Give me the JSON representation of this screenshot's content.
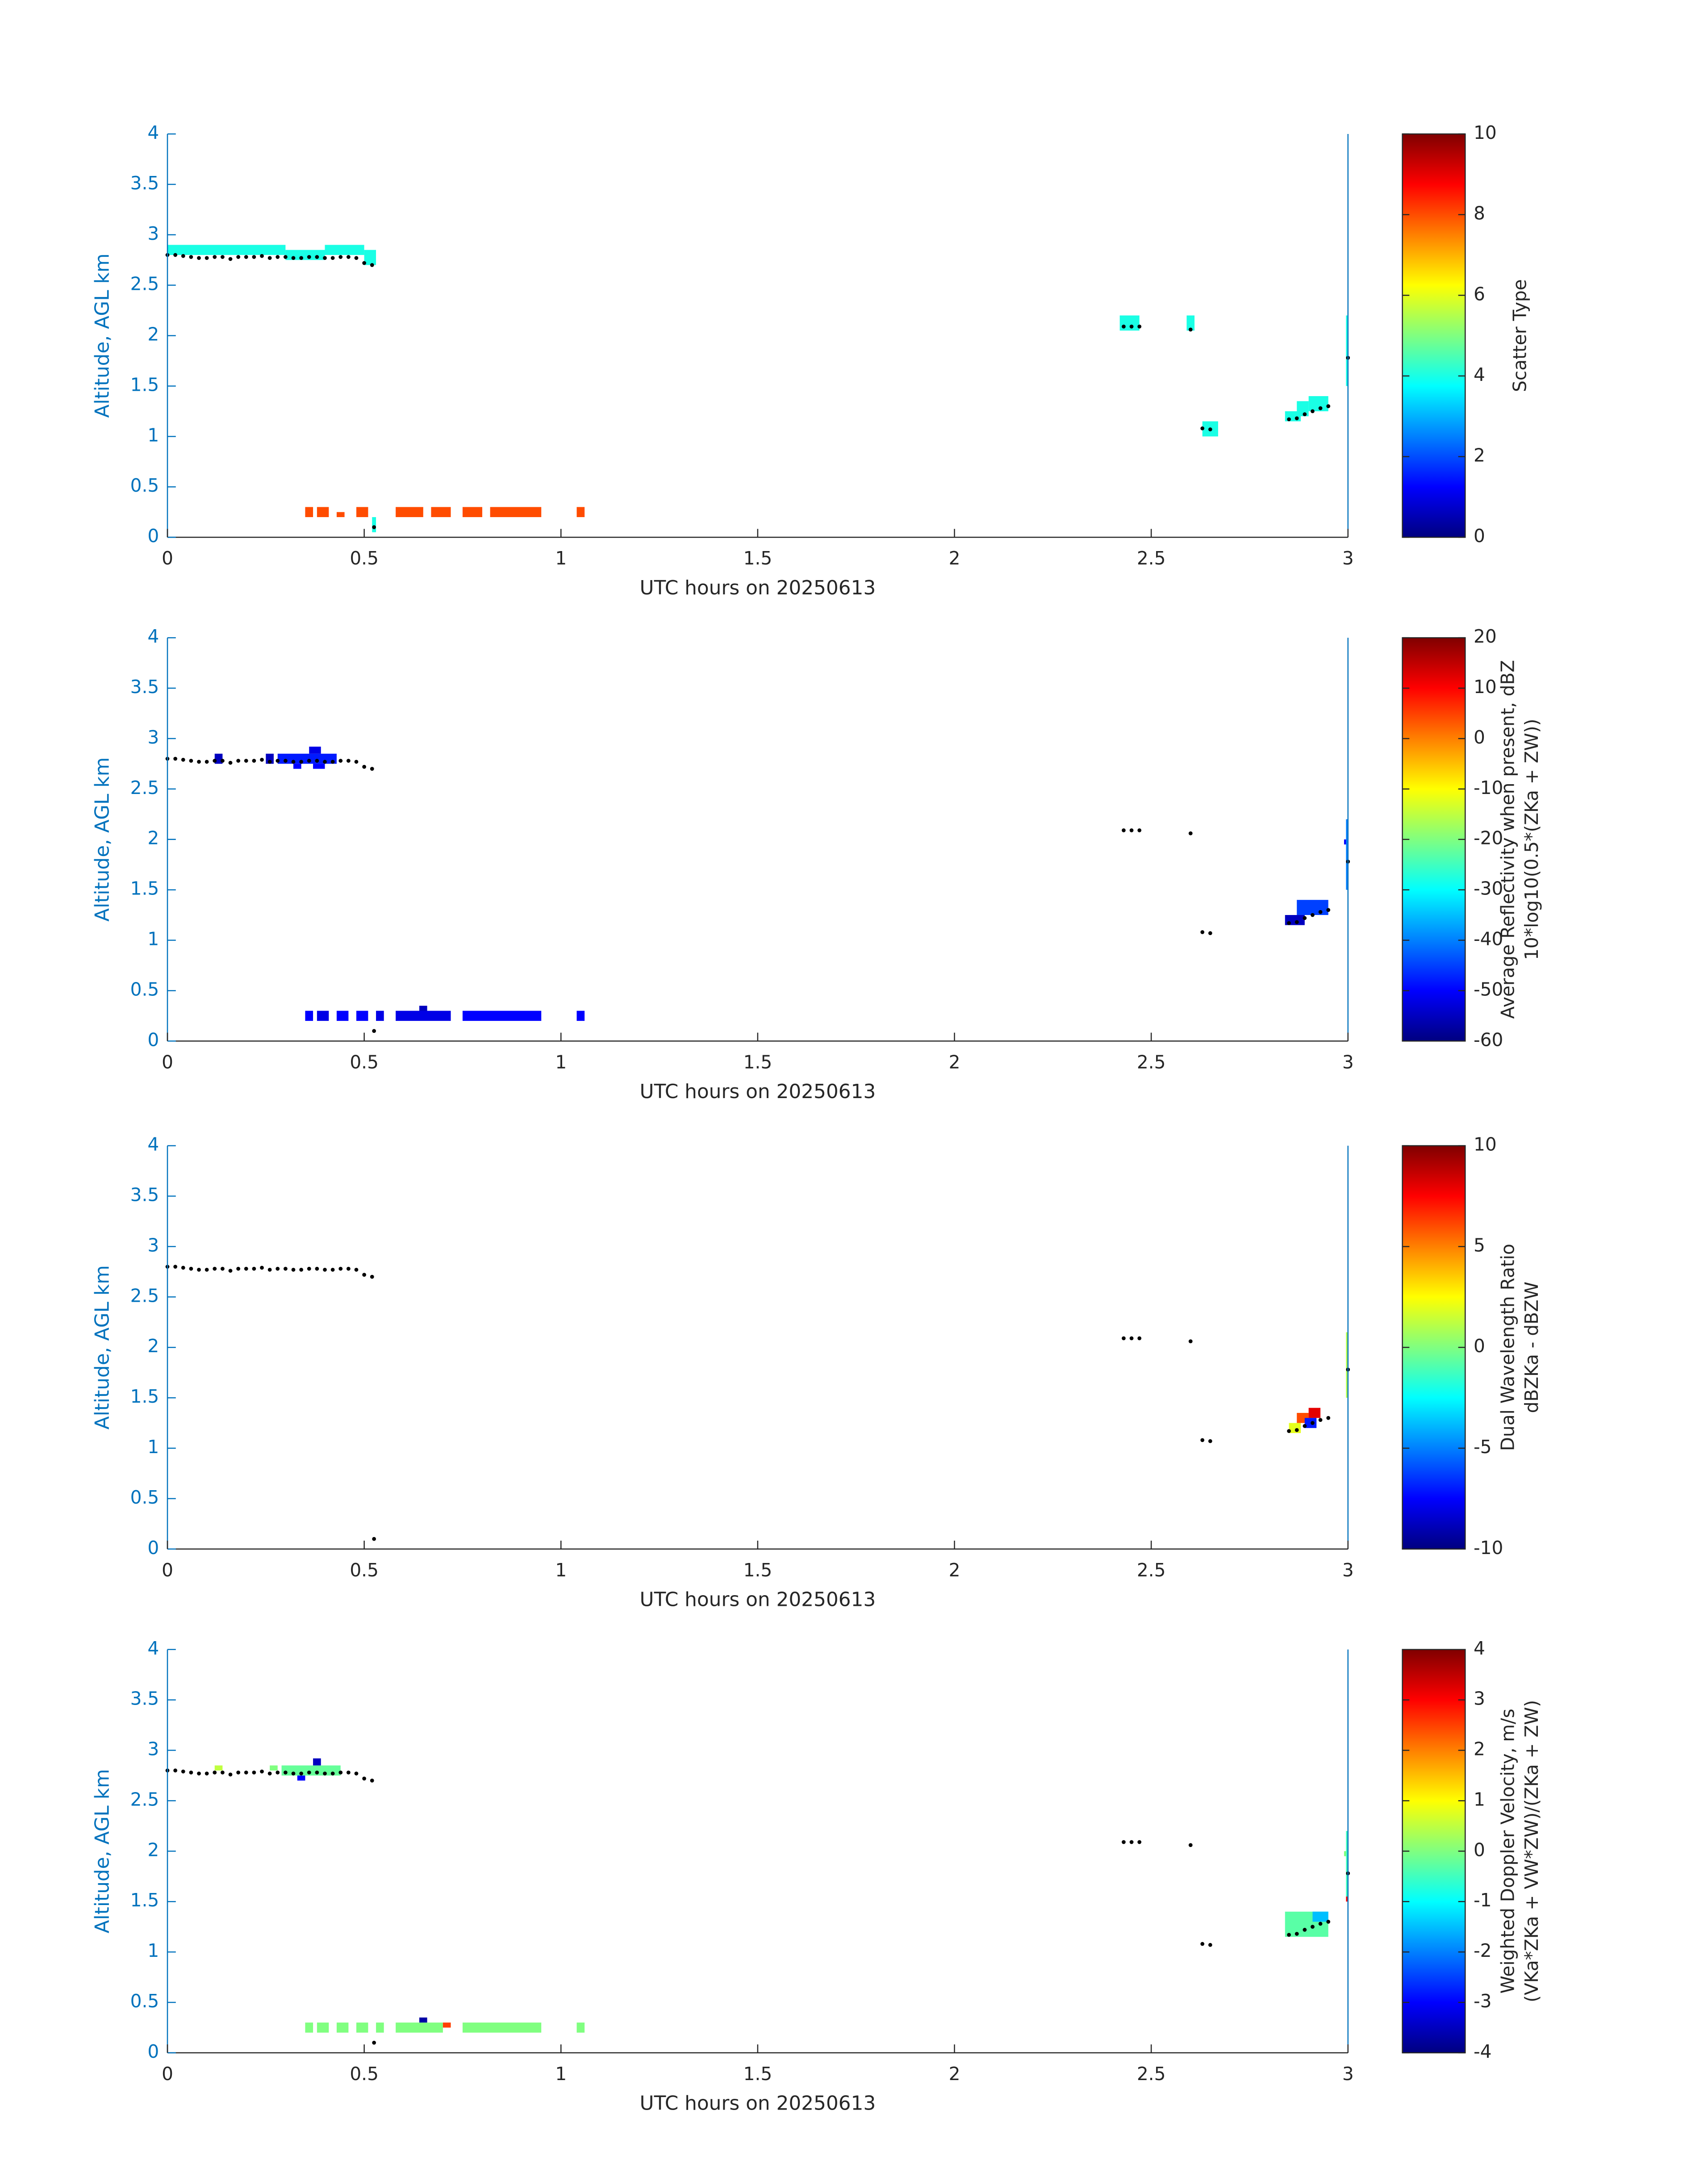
{
  "chart_data": [
    {
      "type": "heatmap",
      "xlabel": "UTC hours on 20250613",
      "ylabel": "Altitude, AGL km",
      "xlim": [
        0,
        3
      ],
      "ylim": [
        0,
        4
      ],
      "xticks": [
        0,
        0.5,
        1,
        1.5,
        2,
        2.5,
        3
      ],
      "yticks": [
        0,
        0.5,
        1,
        1.5,
        2,
        2.5,
        3,
        3.5,
        4
      ],
      "colormap": "jet",
      "clim": [
        0,
        10
      ],
      "cticks": [
        0,
        2,
        4,
        6,
        8,
        10
      ],
      "colorbar_label": [
        "Scatter Type"
      ],
      "cells": [
        {
          "x": [
            0,
            0.3
          ],
          "y": [
            2.8,
            2.9
          ],
          "value": 4
        },
        {
          "x": [
            0.3,
            0.4
          ],
          "y": [
            2.75,
            2.85
          ],
          "value": 4
        },
        {
          "x": [
            0.4,
            0.5
          ],
          "y": [
            2.8,
            2.9
          ],
          "value": 4
        },
        {
          "x": [
            0.5,
            0.53
          ],
          "y": [
            2.7,
            2.85
          ],
          "value": 4
        },
        {
          "x": [
            0.52,
            0.53
          ],
          "y": [
            0.05,
            0.2
          ],
          "value": 4
        },
        {
          "x": [
            2.42,
            2.47
          ],
          "y": [
            2.05,
            2.2
          ],
          "value": 4
        },
        {
          "x": [
            2.59,
            2.61
          ],
          "y": [
            2.05,
            2.2
          ],
          "value": 4
        },
        {
          "x": [
            2.63,
            2.67
          ],
          "y": [
            1.0,
            1.15
          ],
          "value": 4
        },
        {
          "x": [
            2.84,
            2.88
          ],
          "y": [
            1.15,
            1.25
          ],
          "value": 4
        },
        {
          "x": [
            2.87,
            2.9
          ],
          "y": [
            1.2,
            1.35
          ],
          "value": 4
        },
        {
          "x": [
            2.9,
            2.95
          ],
          "y": [
            1.25,
            1.4
          ],
          "value": 4
        },
        {
          "x": [
            2.995,
            3.0
          ],
          "y": [
            1.5,
            2.2
          ],
          "value": 4
        },
        {
          "x": [
            0.35,
            0.37
          ],
          "y": [
            0.2,
            0.3
          ],
          "value": 8
        },
        {
          "x": [
            0.38,
            0.41
          ],
          "y": [
            0.2,
            0.3
          ],
          "value": 8
        },
        {
          "x": [
            0.43,
            0.45
          ],
          "y": [
            0.2,
            0.25
          ],
          "value": 8
        },
        {
          "x": [
            0.48,
            0.51
          ],
          "y": [
            0.2,
            0.3
          ],
          "value": 8
        },
        {
          "x": [
            0.58,
            0.65
          ],
          "y": [
            0.2,
            0.3
          ],
          "value": 8
        },
        {
          "x": [
            0.67,
            0.72
          ],
          "y": [
            0.2,
            0.3
          ],
          "value": 8
        },
        {
          "x": [
            0.75,
            0.8
          ],
          "y": [
            0.2,
            0.3
          ],
          "value": 8
        },
        {
          "x": [
            0.82,
            0.95
          ],
          "y": [
            0.2,
            0.3
          ],
          "value": 8
        },
        {
          "x": [
            1.04,
            1.06
          ],
          "y": [
            0.2,
            0.3
          ],
          "value": 8
        }
      ],
      "points": {
        "color": "#000000",
        "x": [
          0,
          0.02,
          0.04,
          0.06,
          0.08,
          0.1,
          0.12,
          0.14,
          0.16,
          0.18,
          0.2,
          0.22,
          0.24,
          0.26,
          0.28,
          0.3,
          0.32,
          0.34,
          0.36,
          0.38,
          0.4,
          0.42,
          0.44,
          0.46,
          0.48,
          0.5,
          0.52,
          0.525,
          2.43,
          2.45,
          2.47,
          2.6,
          2.63,
          2.65,
          2.85,
          2.87,
          2.89,
          2.91,
          2.93,
          2.95,
          3.0
        ],
        "y": [
          2.8,
          2.8,
          2.79,
          2.78,
          2.77,
          2.77,
          2.78,
          2.78,
          2.76,
          2.78,
          2.78,
          2.78,
          2.79,
          2.77,
          2.78,
          2.78,
          2.77,
          2.77,
          2.78,
          2.78,
          2.77,
          2.77,
          2.78,
          2.78,
          2.77,
          2.72,
          2.7,
          0.1,
          2.09,
          2.09,
          2.09,
          2.06,
          1.08,
          1.07,
          1.17,
          1.18,
          1.22,
          1.25,
          1.28,
          1.3,
          1.78
        ]
      }
    },
    {
      "type": "heatmap",
      "xlabel": "UTC hours on 20250613",
      "ylabel": "Altitude, AGL km",
      "xlim": [
        0,
        3
      ],
      "ylim": [
        0,
        4
      ],
      "xticks": [
        0,
        0.5,
        1,
        1.5,
        2,
        2.5,
        3
      ],
      "yticks": [
        0,
        0.5,
        1,
        1.5,
        2,
        2.5,
        3,
        3.5,
        4
      ],
      "colormap": "jet",
      "clim": [
        -60,
        20
      ],
      "cticks": [
        -60,
        -50,
        -40,
        -30,
        -20,
        -10,
        0,
        10,
        20
      ],
      "colorbar_label": [
        "Average Reflectivity when present, dBZ",
        "10*log10(0.5*(ZKa + ZW))"
      ],
      "cells": [
        {
          "x": [
            0.12,
            0.14
          ],
          "y": [
            2.75,
            2.85
          ],
          "value": -55
        },
        {
          "x": [
            0.25,
            0.27
          ],
          "y": [
            2.75,
            2.85
          ],
          "value": -55
        },
        {
          "x": [
            0.28,
            0.43
          ],
          "y": [
            2.75,
            2.85
          ],
          "value": -48
        },
        {
          "x": [
            0.36,
            0.39
          ],
          "y": [
            2.85,
            2.92
          ],
          "value": -52
        },
        {
          "x": [
            0.32,
            0.34
          ],
          "y": [
            2.7,
            2.75
          ],
          "value": -50
        },
        {
          "x": [
            0.37,
            0.4
          ],
          "y": [
            2.7,
            2.75
          ],
          "value": -50
        },
        {
          "x": [
            0.35,
            0.37
          ],
          "y": [
            0.2,
            0.3
          ],
          "value": -50
        },
        {
          "x": [
            0.38,
            0.41
          ],
          "y": [
            0.2,
            0.3
          ],
          "value": -52
        },
        {
          "x": [
            0.43,
            0.46
          ],
          "y": [
            0.2,
            0.3
          ],
          "value": -50
        },
        {
          "x": [
            0.48,
            0.51
          ],
          "y": [
            0.2,
            0.3
          ],
          "value": -50
        },
        {
          "x": [
            0.53,
            0.55
          ],
          "y": [
            0.2,
            0.3
          ],
          "value": -52
        },
        {
          "x": [
            0.58,
            0.72
          ],
          "y": [
            0.2,
            0.3
          ],
          "value": -52
        },
        {
          "x": [
            0.64,
            0.66
          ],
          "y": [
            0.3,
            0.35
          ],
          "value": -55
        },
        {
          "x": [
            0.75,
            0.95
          ],
          "y": [
            0.2,
            0.3
          ],
          "value": -50
        },
        {
          "x": [
            1.04,
            1.06
          ],
          "y": [
            0.2,
            0.3
          ],
          "value": -50
        },
        {
          "x": [
            2.84,
            2.89
          ],
          "y": [
            1.15,
            1.25
          ],
          "value": -55
        },
        {
          "x": [
            2.87,
            2.95
          ],
          "y": [
            1.25,
            1.4
          ],
          "value": -45
        },
        {
          "x": [
            2.99,
            3.0
          ],
          "y": [
            1.95,
            2.0
          ],
          "value": -50
        },
        {
          "x": [
            2.995,
            3.0
          ],
          "y": [
            1.5,
            2.2
          ],
          "value": -40
        }
      ],
      "points": {
        "color": "#000000",
        "x": [
          0,
          0.02,
          0.04,
          0.06,
          0.08,
          0.1,
          0.12,
          0.14,
          0.16,
          0.18,
          0.2,
          0.22,
          0.24,
          0.26,
          0.28,
          0.3,
          0.32,
          0.34,
          0.36,
          0.38,
          0.4,
          0.42,
          0.44,
          0.46,
          0.48,
          0.5,
          0.52,
          0.525,
          2.43,
          2.45,
          2.47,
          2.6,
          2.63,
          2.65,
          2.85,
          2.87,
          2.89,
          2.91,
          2.93,
          2.95,
          3.0
        ],
        "y": [
          2.8,
          2.8,
          2.79,
          2.78,
          2.77,
          2.77,
          2.78,
          2.78,
          2.76,
          2.78,
          2.78,
          2.78,
          2.79,
          2.77,
          2.78,
          2.78,
          2.77,
          2.77,
          2.78,
          2.78,
          2.77,
          2.77,
          2.78,
          2.78,
          2.77,
          2.72,
          2.7,
          0.1,
          2.09,
          2.09,
          2.09,
          2.06,
          1.08,
          1.07,
          1.17,
          1.18,
          1.22,
          1.25,
          1.28,
          1.3,
          1.78
        ]
      }
    },
    {
      "type": "heatmap",
      "xlabel": "UTC hours on 20250613",
      "ylabel": "Altitude, AGL km",
      "xlim": [
        0,
        3
      ],
      "ylim": [
        0,
        4
      ],
      "xticks": [
        0,
        0.5,
        1,
        1.5,
        2,
        2.5,
        3
      ],
      "yticks": [
        0,
        0.5,
        1,
        1.5,
        2,
        2.5,
        3,
        3.5,
        4
      ],
      "colormap": "jet",
      "clim": [
        -10,
        10
      ],
      "cticks": [
        -10,
        -5,
        0,
        5,
        10
      ],
      "colorbar_label": [
        "Dual Wavelength Ratio",
        "dBZKa - dBZW"
      ],
      "cells": [
        {
          "x": [
            2.85,
            2.88
          ],
          "y": [
            1.15,
            1.25
          ],
          "value": 2
        },
        {
          "x": [
            2.87,
            2.9
          ],
          "y": [
            1.25,
            1.35
          ],
          "value": 6
        },
        {
          "x": [
            2.9,
            2.93
          ],
          "y": [
            1.3,
            1.4
          ],
          "value": 8
        },
        {
          "x": [
            2.89,
            2.92
          ],
          "y": [
            1.2,
            1.3
          ],
          "value": -7
        },
        {
          "x": [
            2.995,
            3.0
          ],
          "y": [
            1.5,
            2.15
          ],
          "value": 1
        }
      ],
      "points": {
        "color": "#000000",
        "x": [
          0,
          0.02,
          0.04,
          0.06,
          0.08,
          0.1,
          0.12,
          0.14,
          0.16,
          0.18,
          0.2,
          0.22,
          0.24,
          0.26,
          0.28,
          0.3,
          0.32,
          0.34,
          0.36,
          0.38,
          0.4,
          0.42,
          0.44,
          0.46,
          0.48,
          0.5,
          0.52,
          0.525,
          2.43,
          2.45,
          2.47,
          2.6,
          2.63,
          2.65,
          2.85,
          2.87,
          2.89,
          2.91,
          2.93,
          2.95,
          3.0
        ],
        "y": [
          2.8,
          2.8,
          2.79,
          2.78,
          2.77,
          2.77,
          2.78,
          2.78,
          2.76,
          2.78,
          2.78,
          2.78,
          2.79,
          2.77,
          2.78,
          2.78,
          2.77,
          2.77,
          2.78,
          2.78,
          2.77,
          2.77,
          2.78,
          2.78,
          2.77,
          2.72,
          2.7,
          0.1,
          2.09,
          2.09,
          2.09,
          2.06,
          1.08,
          1.07,
          1.17,
          1.18,
          1.22,
          1.25,
          1.28,
          1.3,
          1.78
        ]
      }
    },
    {
      "type": "heatmap",
      "xlabel": "UTC hours on 20250613",
      "ylabel": "Altitude, AGL km",
      "xlim": [
        0,
        3
      ],
      "ylim": [
        0,
        4
      ],
      "xticks": [
        0,
        0.5,
        1,
        1.5,
        2,
        2.5,
        3
      ],
      "yticks": [
        0,
        0.5,
        1,
        1.5,
        2,
        2.5,
        3,
        3.5,
        4
      ],
      "colormap": "jet",
      "clim": [
        -4,
        4
      ],
      "cticks": [
        -4,
        -3,
        -2,
        -1,
        0,
        1,
        2,
        3,
        4
      ],
      "colorbar_label": [
        "Weighted Doppler Velocity, m/s",
        "(VKa*ZKa + VW*ZW)/(ZKa + ZW)"
      ],
      "cells": [
        {
          "x": [
            0.12,
            0.14
          ],
          "y": [
            2.8,
            2.85
          ],
          "value": 0.5
        },
        {
          "x": [
            0.26,
            0.28
          ],
          "y": [
            2.8,
            2.85
          ],
          "value": 0
        },
        {
          "x": [
            0.29,
            0.44
          ],
          "y": [
            2.75,
            2.85
          ],
          "value": -0.2
        },
        {
          "x": [
            0.33,
            0.35
          ],
          "y": [
            2.7,
            2.75
          ],
          "value": -3
        },
        {
          "x": [
            0.37,
            0.39
          ],
          "y": [
            2.85,
            2.92
          ],
          "value": -3.5
        },
        {
          "x": [
            0.35,
            0.37
          ],
          "y": [
            0.2,
            0.3
          ],
          "value": 0
        },
        {
          "x": [
            0.38,
            0.41
          ],
          "y": [
            0.2,
            0.3
          ],
          "value": 0
        },
        {
          "x": [
            0.43,
            0.46
          ],
          "y": [
            0.2,
            0.3
          ],
          "value": 0
        },
        {
          "x": [
            0.48,
            0.51
          ],
          "y": [
            0.2,
            0.3
          ],
          "value": 0
        },
        {
          "x": [
            0.53,
            0.55
          ],
          "y": [
            0.2,
            0.3
          ],
          "value": 0
        },
        {
          "x": [
            0.58,
            0.7
          ],
          "y": [
            0.2,
            0.3
          ],
          "value": 0
        },
        {
          "x": [
            0.7,
            0.72
          ],
          "y": [
            0.25,
            0.3
          ],
          "value": 2.5
        },
        {
          "x": [
            0.64,
            0.66
          ],
          "y": [
            0.3,
            0.35
          ],
          "value": -3.7
        },
        {
          "x": [
            0.75,
            0.95
          ],
          "y": [
            0.2,
            0.3
          ],
          "value": 0
        },
        {
          "x": [
            1.04,
            1.06
          ],
          "y": [
            0.2,
            0.3
          ],
          "value": 0
        },
        {
          "x": [
            2.84,
            2.95
          ],
          "y": [
            1.15,
            1.4
          ],
          "value": -0.3
        },
        {
          "x": [
            2.91,
            2.95
          ],
          "y": [
            1.3,
            1.4
          ],
          "value": -1.5
        },
        {
          "x": [
            2.99,
            3.0
          ],
          "y": [
            1.95,
            2.0
          ],
          "value": 0
        },
        {
          "x": [
            2.995,
            3.0
          ],
          "y": [
            1.55,
            2.2
          ],
          "value": -0.5
        },
        {
          "x": [
            2.995,
            3.0
          ],
          "y": [
            1.5,
            1.55
          ],
          "value": 3
        }
      ],
      "points": {
        "color": "#000000",
        "x": [
          0,
          0.02,
          0.04,
          0.06,
          0.08,
          0.1,
          0.12,
          0.14,
          0.16,
          0.18,
          0.2,
          0.22,
          0.24,
          0.26,
          0.28,
          0.3,
          0.32,
          0.34,
          0.36,
          0.38,
          0.4,
          0.42,
          0.44,
          0.46,
          0.48,
          0.5,
          0.52,
          0.525,
          2.43,
          2.45,
          2.47,
          2.6,
          2.63,
          2.65,
          2.85,
          2.87,
          2.89,
          2.91,
          2.93,
          2.95,
          3.0
        ],
        "y": [
          2.8,
          2.8,
          2.79,
          2.78,
          2.77,
          2.77,
          2.78,
          2.78,
          2.76,
          2.78,
          2.78,
          2.78,
          2.79,
          2.77,
          2.78,
          2.78,
          2.77,
          2.77,
          2.78,
          2.78,
          2.77,
          2.77,
          2.78,
          2.78,
          2.77,
          2.72,
          2.7,
          0.1,
          2.09,
          2.09,
          2.09,
          2.06,
          1.08,
          1.07,
          1.17,
          1.18,
          1.22,
          1.25,
          1.28,
          1.3,
          1.78
        ]
      }
    }
  ]
}
